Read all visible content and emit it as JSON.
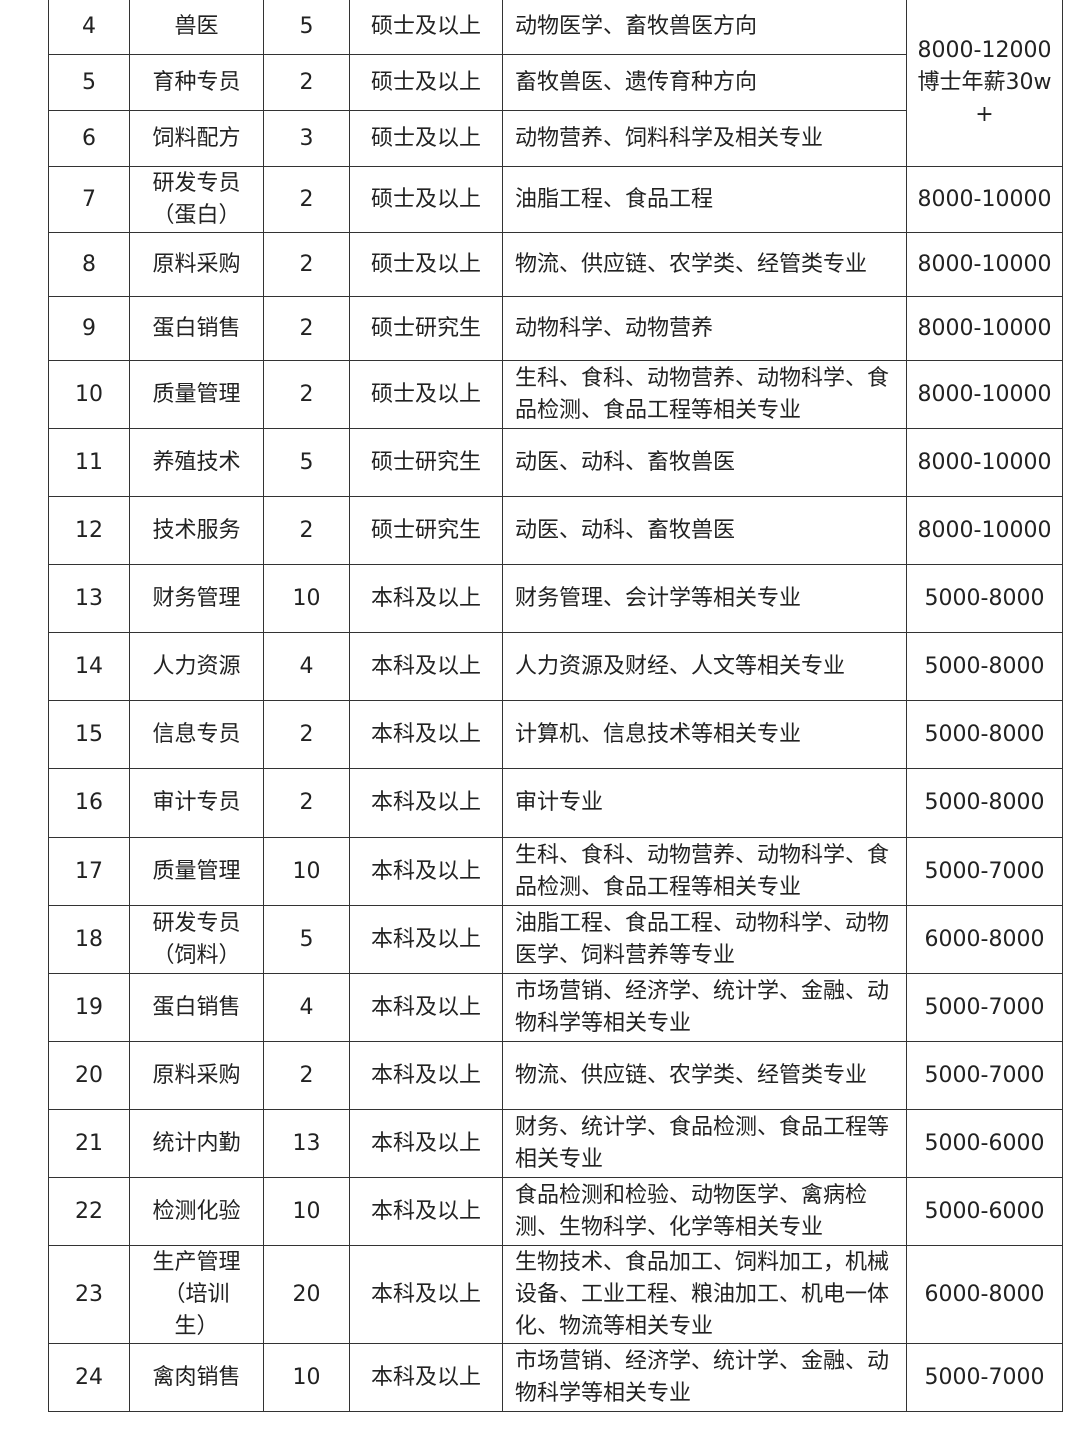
{
  "table": {
    "rows": [
      {
        "cells": [
          "4",
          "兽医",
          "5",
          "硕士及以上",
          "动物医学、畜牧兽医方向"
        ],
        "salary": "8000-12000博士年薪30w+"
      },
      {
        "cells": [
          "5",
          "育种专员",
          "2",
          "硕士及以上",
          "畜牧兽医、遗传育种方向"
        ]
      },
      {
        "cells": [
          "6",
          "饲料配方",
          "3",
          "硕士及以上",
          "动物营养、饲料科学及相关专业"
        ]
      },
      {
        "cells": [
          "7",
          "研发专员（蛋白）",
          "2",
          "硕士及以上",
          "油脂工程、食品工程"
        ],
        "salary": "8000-10000"
      },
      {
        "cells": [
          "8",
          "原料采购",
          "2",
          "硕士及以上",
          "物流、供应链、农学类、经管类专业"
        ],
        "salary": "8000-10000"
      },
      {
        "cells": [
          "9",
          "蛋白销售",
          "2",
          "硕士研究生",
          "动物科学、动物营养"
        ],
        "salary": "8000-10000"
      },
      {
        "cells": [
          "10",
          "质量管理",
          "2",
          "硕士及以上",
          "生科、食科、动物营养、动物科学、食品检测、食品工程等相关专业"
        ],
        "salary": "8000-10000"
      },
      {
        "cells": [
          "11",
          "养殖技术",
          "5",
          "硕士研究生",
          "动医、动科、畜牧兽医"
        ],
        "salary": "8000-10000"
      },
      {
        "cells": [
          "12",
          "技术服务",
          "2",
          "硕士研究生",
          "动医、动科、畜牧兽医"
        ],
        "salary": "8000-10000"
      },
      {
        "cells": [
          "13",
          "财务管理",
          "10",
          "本科及以上",
          "财务管理、会计学等相关专业"
        ],
        "salary": "5000-8000"
      },
      {
        "cells": [
          "14",
          "人力资源",
          "4",
          "本科及以上",
          "人力资源及财经、人文等相关专业"
        ],
        "salary": "5000-8000"
      },
      {
        "cells": [
          "15",
          "信息专员",
          "2",
          "本科及以上",
          "计算机、信息技术等相关专业"
        ],
        "salary": "5000-8000"
      },
      {
        "cells": [
          "16",
          "审计专员",
          "2",
          "本科及以上",
          "审计专业"
        ],
        "salary": "5000-8000"
      },
      {
        "cells": [
          "17",
          "质量管理",
          "10",
          "本科及以上",
          "生科、食科、动物营养、动物科学、食品检测、食品工程等相关专业"
        ],
        "salary": "5000-7000"
      },
      {
        "cells": [
          "18",
          "研发专员（饲料）",
          "5",
          "本科及以上",
          "油脂工程、食品工程、动物科学、动物医学、饲料营养等专业"
        ],
        "salary": "6000-8000"
      },
      {
        "cells": [
          "19",
          "蛋白销售",
          "4",
          "本科及以上",
          "市场营销、经济学、统计学、金融、动物科学等相关专业"
        ],
        "salary": "5000-7000"
      },
      {
        "cells": [
          "20",
          "原料采购",
          "2",
          "本科及以上",
          "物流、供应链、农学类、经管类专业"
        ],
        "salary": "5000-7000"
      },
      {
        "cells": [
          "21",
          "统计内勤",
          "13",
          "本科及以上",
          "财务、统计学、食品检测、食品工程等相关专业"
        ],
        "salary": "5000-6000"
      },
      {
        "cells": [
          "22",
          "检测化验",
          "10",
          "本科及以上",
          "食品检测和检验、动物医学、禽病检测、生物科学、化学等相关专业"
        ],
        "salary": "5000-6000"
      },
      {
        "cells": [
          "23",
          "生产管理（培训生）",
          "20",
          "本科及以上",
          "生物技术、食品加工、饲料加工，机械设备、工业工程、粮油加工、机电一体化、物流等相关专业"
        ],
        "salary": "6000-8000"
      },
      {
        "cells": [
          "24",
          "禽肉销售",
          "10",
          "本科及以上",
          "市场营销、经济学、统计学、金融、动物科学等相关专业"
        ],
        "salary": "5000-7000"
      }
    ]
  }
}
